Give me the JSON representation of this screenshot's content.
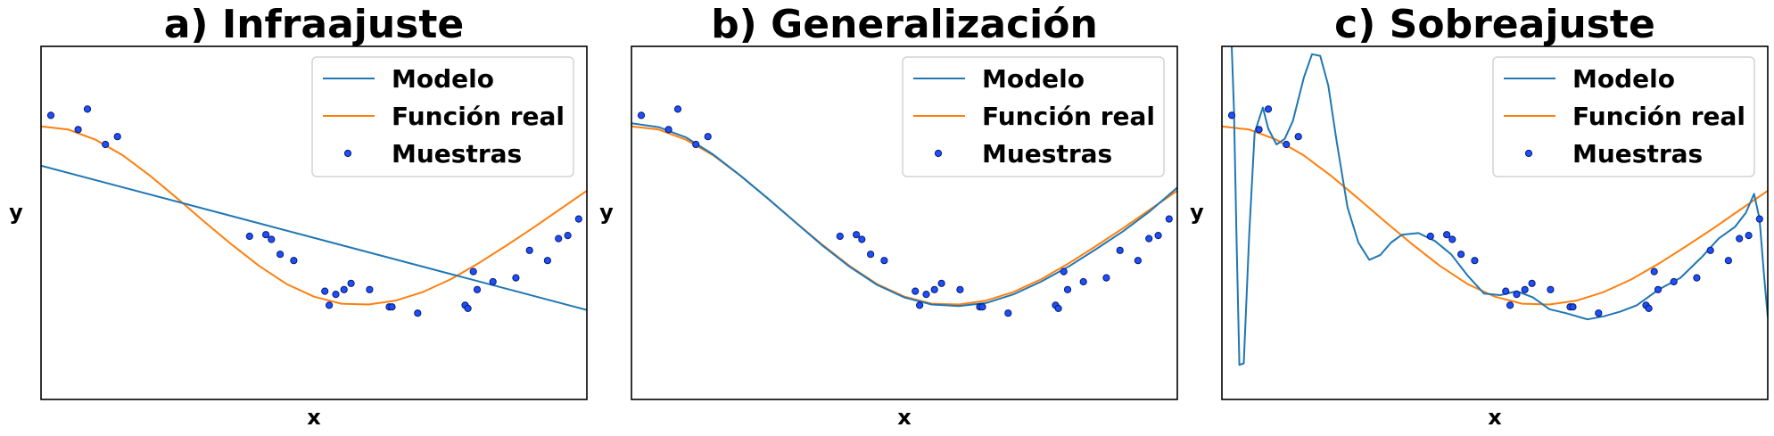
{
  "figure": {
    "x_range": [
      0,
      1
    ],
    "y_range": [
      -2.5,
      2
    ],
    "legend_placement": "top-right",
    "colors": {
      "model": "#1f77b4",
      "true_function": "#ff7f0e",
      "samples_fill": "#1c4fff",
      "samples_edge": "#0a1a66",
      "axes": "#000000"
    }
  },
  "chart_data": [
    {
      "type": "line",
      "title": "a) Infraajuste",
      "xlabel": "x",
      "ylabel": "y",
      "xlim": [
        0,
        1
      ],
      "ylim": [
        -2.5,
        2
      ],
      "grid": false,
      "legend": [
        "Modelo",
        "Función real",
        "Muestras"
      ],
      "model_points": [
        [
          0,
          0.48
        ],
        [
          1,
          -1.36
        ]
      ],
      "true_function_points": [
        [
          0,
          0.98
        ],
        [
          0.05,
          0.94
        ],
        [
          0.1,
          0.81
        ],
        [
          0.15,
          0.61
        ],
        [
          0.2,
          0.35
        ],
        [
          0.25,
          0.06
        ],
        [
          0.3,
          -0.24
        ],
        [
          0.35,
          -0.53
        ],
        [
          0.4,
          -0.8
        ],
        [
          0.45,
          -1.03
        ],
        [
          0.5,
          -1.19
        ],
        [
          0.55,
          -1.28
        ],
        [
          0.6,
          -1.29
        ],
        [
          0.65,
          -1.24
        ],
        [
          0.7,
          -1.13
        ],
        [
          0.75,
          -0.97
        ],
        [
          0.8,
          -0.77
        ],
        [
          0.85,
          -0.55
        ],
        [
          0.9,
          -0.32
        ],
        [
          0.95,
          -0.08
        ],
        [
          1,
          0.16
        ]
      ]
    },
    {
      "type": "line",
      "title": "b) Generalización",
      "xlabel": "x",
      "ylabel": "y",
      "xlim": [
        0,
        1
      ],
      "ylim": [
        -2.5,
        2
      ],
      "grid": false,
      "legend": [
        "Modelo",
        "Función real",
        "Muestras"
      ],
      "model_points": [
        [
          0,
          1.02
        ],
        [
          0.05,
          0.97
        ],
        [
          0.1,
          0.84
        ],
        [
          0.15,
          0.62
        ],
        [
          0.2,
          0.35
        ],
        [
          0.25,
          0.06
        ],
        [
          0.3,
          -0.24
        ],
        [
          0.35,
          -0.54
        ],
        [
          0.4,
          -0.81
        ],
        [
          0.45,
          -1.04
        ],
        [
          0.5,
          -1.2
        ],
        [
          0.55,
          -1.29
        ],
        [
          0.6,
          -1.31
        ],
        [
          0.65,
          -1.27
        ],
        [
          0.7,
          -1.16
        ],
        [
          0.75,
          -1.0
        ],
        [
          0.8,
          -0.81
        ],
        [
          0.85,
          -0.59
        ],
        [
          0.9,
          -0.36
        ],
        [
          0.95,
          -0.1
        ],
        [
          1,
          0.2
        ]
      ],
      "true_function_points": [
        [
          0,
          0.98
        ],
        [
          0.05,
          0.94
        ],
        [
          0.1,
          0.81
        ],
        [
          0.15,
          0.61
        ],
        [
          0.2,
          0.35
        ],
        [
          0.25,
          0.06
        ],
        [
          0.3,
          -0.24
        ],
        [
          0.35,
          -0.53
        ],
        [
          0.4,
          -0.8
        ],
        [
          0.45,
          -1.03
        ],
        [
          0.5,
          -1.19
        ],
        [
          0.55,
          -1.28
        ],
        [
          0.6,
          -1.29
        ],
        [
          0.65,
          -1.24
        ],
        [
          0.7,
          -1.13
        ],
        [
          0.75,
          -0.97
        ],
        [
          0.8,
          -0.77
        ],
        [
          0.85,
          -0.55
        ],
        [
          0.9,
          -0.32
        ],
        [
          0.95,
          -0.08
        ],
        [
          1,
          0.16
        ]
      ]
    },
    {
      "type": "line",
      "title": "c) Sobreajuste",
      "xlabel": "x",
      "ylabel": "y",
      "xlim": [
        0,
        1
      ],
      "ylim": [
        -2.5,
        2
      ],
      "grid": false,
      "legend": [
        "Modelo",
        "Función real",
        "Muestras"
      ],
      "model_points": [
        [
          0.018,
          2.0
        ],
        [
          0.022,
          1.2
        ],
        [
          0.027,
          -0.5
        ],
        [
          0.032,
          -2.06
        ],
        [
          0.04,
          -2.04
        ],
        [
          0.05,
          -0.4
        ],
        [
          0.06,
          0.9
        ],
        [
          0.075,
          1.22
        ],
        [
          0.085,
          0.95
        ],
        [
          0.1,
          0.75
        ],
        [
          0.115,
          0.82
        ],
        [
          0.13,
          1.05
        ],
        [
          0.15,
          1.6
        ],
        [
          0.165,
          1.9
        ],
        [
          0.18,
          1.88
        ],
        [
          0.195,
          1.5
        ],
        [
          0.21,
          0.8
        ],
        [
          0.23,
          -0.05
        ],
        [
          0.25,
          -0.5
        ],
        [
          0.27,
          -0.72
        ],
        [
          0.29,
          -0.66
        ],
        [
          0.31,
          -0.5
        ],
        [
          0.33,
          -0.4
        ],
        [
          0.36,
          -0.38
        ],
        [
          0.39,
          -0.48
        ],
        [
          0.42,
          -0.65
        ],
        [
          0.45,
          -0.92
        ],
        [
          0.48,
          -1.15
        ],
        [
          0.51,
          -1.17
        ],
        [
          0.54,
          -1.12
        ],
        [
          0.57,
          -1.2
        ],
        [
          0.6,
          -1.35
        ],
        [
          0.63,
          -1.4
        ],
        [
          0.67,
          -1.48
        ],
        [
          0.7,
          -1.44
        ],
        [
          0.73,
          -1.38
        ],
        [
          0.76,
          -1.3
        ],
        [
          0.8,
          -1.1
        ],
        [
          0.84,
          -0.95
        ],
        [
          0.88,
          -0.68
        ],
        [
          0.91,
          -0.45
        ],
        [
          0.94,
          -0.3
        ],
        [
          0.96,
          -0.12
        ],
        [
          0.975,
          0.12
        ],
        [
          0.985,
          -0.2
        ],
        [
          0.993,
          -0.9
        ],
        [
          1.0,
          -1.45
        ]
      ],
      "true_function_points": [
        [
          0,
          0.98
        ],
        [
          0.05,
          0.94
        ],
        [
          0.1,
          0.81
        ],
        [
          0.15,
          0.61
        ],
        [
          0.2,
          0.35
        ],
        [
          0.25,
          0.06
        ],
        [
          0.3,
          -0.24
        ],
        [
          0.35,
          -0.53
        ],
        [
          0.4,
          -0.8
        ],
        [
          0.45,
          -1.03
        ],
        [
          0.5,
          -1.19
        ],
        [
          0.55,
          -1.28
        ],
        [
          0.6,
          -1.29
        ],
        [
          0.65,
          -1.24
        ],
        [
          0.7,
          -1.13
        ],
        [
          0.75,
          -0.97
        ],
        [
          0.8,
          -0.77
        ],
        [
          0.85,
          -0.55
        ],
        [
          0.9,
          -0.32
        ],
        [
          0.95,
          -0.08
        ],
        [
          1,
          0.16
        ]
      ]
    }
  ],
  "samples": [
    [
      0.018,
      1.12
    ],
    [
      0.068,
      0.94
    ],
    [
      0.085,
      1.2
    ],
    [
      0.118,
      0.75
    ],
    [
      0.14,
      0.85
    ],
    [
      0.382,
      -0.42
    ],
    [
      0.412,
      -0.4
    ],
    [
      0.422,
      -0.46
    ],
    [
      0.438,
      -0.65
    ],
    [
      0.463,
      -0.73
    ],
    [
      0.52,
      -1.12
    ],
    [
      0.528,
      -1.3
    ],
    [
      0.54,
      -1.16
    ],
    [
      0.555,
      -1.1
    ],
    [
      0.568,
      -1.02
    ],
    [
      0.602,
      -1.1
    ],
    [
      0.638,
      -1.32
    ],
    [
      0.643,
      -1.32
    ],
    [
      0.69,
      -1.4
    ],
    [
      0.777,
      -1.3
    ],
    [
      0.782,
      -1.34
    ],
    [
      0.792,
      -0.87
    ],
    [
      0.799,
      -1.1
    ],
    [
      0.828,
      -1.0
    ],
    [
      0.87,
      -0.95
    ],
    [
      0.895,
      -0.6
    ],
    [
      0.928,
      -0.73
    ],
    [
      0.948,
      -0.45
    ],
    [
      0.965,
      -0.41
    ],
    [
      0.985,
      -0.2
    ]
  ]
}
